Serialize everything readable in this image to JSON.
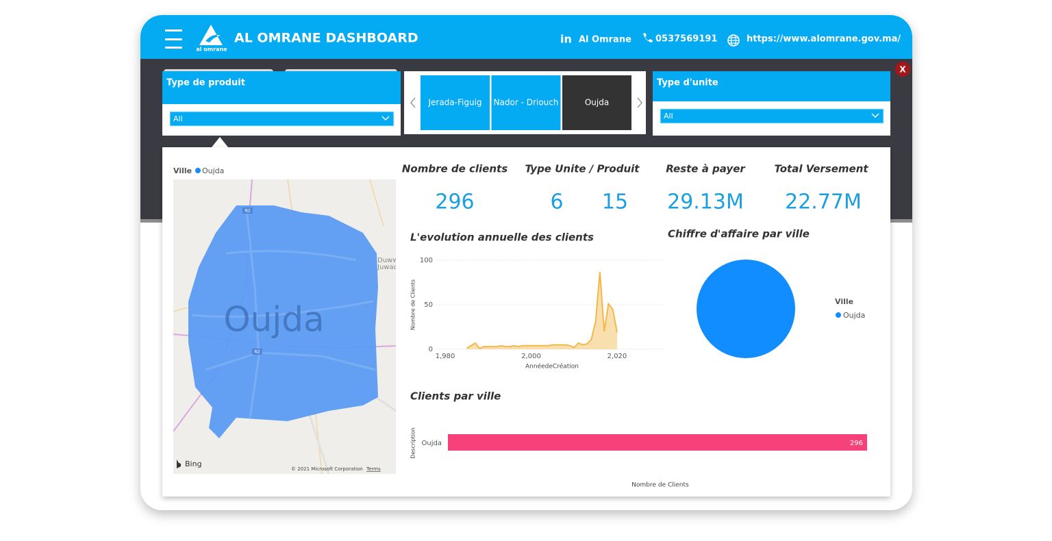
{
  "header": {
    "logo_text": "al omrane",
    "title": "AL OMRANE DASHBOARD",
    "linkedin_icon": "in",
    "linkedin": "Al Omrane",
    "phone": "0537569191",
    "website": "https://www.alomrane.gov.ma/"
  },
  "close_button": "X",
  "filters": {
    "product": {
      "label": "Type de produit",
      "value": "All"
    },
    "city_tabs": {
      "items": [
        "Jerada-Figuig",
        "Nador - Driouch",
        "Oujda"
      ],
      "active": 2
    },
    "unit": {
      "label": "Type d'unite",
      "value": "All"
    }
  },
  "map": {
    "legend_title": "Ville",
    "legend_item": "Oujda",
    "legend_color": "#118dff",
    "city_label": "Oujda",
    "road_labels": [
      "N2",
      "N2"
    ],
    "place_labels": [
      "Duww",
      "Juwad"
    ],
    "provider": "Bing",
    "attribution": "© 2021 Microsoft Corporation",
    "terms": "Terms"
  },
  "kpis": [
    {
      "label": "Nombre de clients",
      "values": [
        "296"
      ]
    },
    {
      "label": "Type Unite / Produit",
      "values": [
        "6",
        "15"
      ]
    },
    {
      "label": "Reste à payer",
      "values": [
        "29.13M"
      ]
    },
    {
      "label": "Total Versement",
      "values": [
        "22.77M"
      ]
    }
  ],
  "chart_data": [
    {
      "type": "area",
      "title": "L'evolution annuelle des clients",
      "x_label": "AnnéedeCréation",
      "y_label": "Nombre de Clients",
      "x": [
        1985,
        1986,
        1987,
        1988,
        1989,
        1990,
        1991,
        1992,
        1993,
        1994,
        1995,
        1996,
        1997,
        1998,
        1999,
        2000,
        2001,
        2002,
        2003,
        2004,
        2005,
        2006,
        2007,
        2008,
        2009,
        2010,
        2011,
        2012,
        2013,
        2014,
        2015,
        2016,
        2017,
        2018,
        2019,
        2020
      ],
      "values": [
        1,
        4,
        7,
        1,
        3,
        3,
        3,
        3,
        4,
        3,
        3,
        4,
        3,
        4,
        4,
        4,
        4,
        4,
        4,
        4,
        5,
        5,
        5,
        5,
        4,
        2,
        7,
        5,
        6,
        11,
        31,
        87,
        20,
        51,
        45,
        19
      ],
      "color": "#f2b84b",
      "xlim": [
        1978,
        2031
      ],
      "ylim": [
        0,
        100
      ],
      "xticks": [
        {
          "value": 1980,
          "label": "1,980"
        },
        {
          "value": 2000,
          "label": "2,000"
        },
        {
          "value": 2020,
          "label": "2,020"
        }
      ],
      "yticks": [
        0,
        50,
        100
      ],
      "grid": true
    },
    {
      "type": "pie",
      "title": "Chiffre d'affaire par ville",
      "legend_title": "Ville",
      "categories": [
        "Oujda"
      ],
      "values": [
        100
      ],
      "colors": [
        "#118dff"
      ]
    },
    {
      "type": "hbar",
      "title": "Clients par ville",
      "x_label": "Nombre de Clients",
      "y_label": "Description",
      "categories": [
        "Oujda"
      ],
      "values": [
        296
      ],
      "color": "#f7417a",
      "xlim": [
        0,
        296
      ]
    }
  ]
}
